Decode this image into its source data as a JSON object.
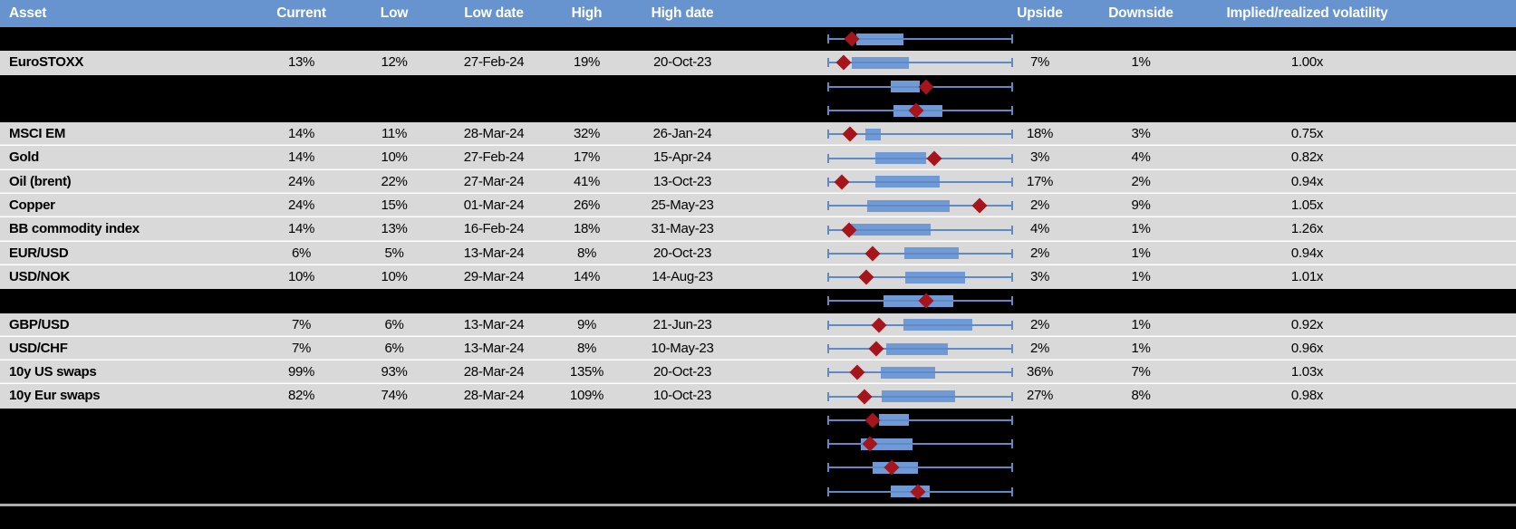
{
  "header": {
    "columns": [
      "Asset",
      "Current",
      "Low",
      "Low date",
      "High",
      "High date",
      "Upside",
      "Downside",
      "Implied/realized volatility"
    ]
  },
  "colors": {
    "header_bg": "#6794CE",
    "header_text": "#FFFFFF",
    "row_gray": "#D9D9D9",
    "row_hidden": "#000000",
    "whisker_blue": "#5E8AC7",
    "box_blue": "#6F9AD6",
    "diamond_red": "#A5151B",
    "divider_gray": "#ADADAD"
  },
  "rows": [
    {
      "type": "hidden",
      "plot": {
        "box_lo": 0.155,
        "box_hi": 0.41,
        "diamond": 0.13
      }
    },
    {
      "type": "asset",
      "asset": "EuroSTOXX",
      "current": "13%",
      "low": "12%",
      "low_date": "27-Feb-24",
      "high": "19%",
      "high_date": "20-Oct-23",
      "upside": "7%",
      "downside": "1%",
      "impl_real": "1.00x",
      "plot": {
        "box_lo": 0.13,
        "box_hi": 0.44,
        "diamond": 0.09
      }
    },
    {
      "type": "hidden",
      "plot": {
        "box_lo": 0.34,
        "box_hi": 0.5,
        "diamond": 0.53
      }
    },
    {
      "type": "hidden",
      "plot": {
        "box_lo": 0.355,
        "box_hi": 0.62,
        "diamond": 0.48
      }
    },
    {
      "type": "asset",
      "asset": "MSCI EM",
      "current": "14%",
      "low": "11%",
      "low_date": "28-Mar-24",
      "high": "32%",
      "high_date": "26-Jan-24",
      "upside": "18%",
      "downside": "3%",
      "impl_real": "0.75x",
      "plot": {
        "box_lo": 0.205,
        "box_hi": 0.29,
        "diamond": 0.12
      }
    },
    {
      "type": "asset",
      "asset": "Gold",
      "current": "14%",
      "low": "10%",
      "low_date": "27-Feb-24",
      "high": "17%",
      "high_date": "15-Apr-24",
      "upside": "3%",
      "downside": "4%",
      "impl_real": "0.82x",
      "plot": {
        "box_lo": 0.26,
        "box_hi": 0.53,
        "diamond": 0.575
      }
    },
    {
      "type": "asset",
      "asset": "Oil (brent)",
      "current": "24%",
      "low": "22%",
      "low_date": "27-Mar-24",
      "high": "41%",
      "high_date": "13-Oct-23",
      "upside": "17%",
      "downside": "2%",
      "impl_real": "0.94x",
      "plot": {
        "box_lo": 0.26,
        "box_hi": 0.605,
        "diamond": 0.078
      }
    },
    {
      "type": "asset",
      "asset": "Copper",
      "current": "24%",
      "low": "15%",
      "low_date": "01-Mar-24",
      "high": "26%",
      "high_date": "25-May-23",
      "upside": "2%",
      "downside": "9%",
      "impl_real": "1.05x",
      "plot": {
        "box_lo": 0.215,
        "box_hi": 0.66,
        "diamond": 0.82
      }
    },
    {
      "type": "asset",
      "asset": "BB commodity index",
      "current": "14%",
      "low": "13%",
      "low_date": "16-Feb-24",
      "high": "18%",
      "high_date": "31-May-23",
      "upside": "4%",
      "downside": "1%",
      "impl_real": "1.26x",
      "plot": {
        "box_lo": 0.12,
        "box_hi": 0.556,
        "diamond": 0.117
      }
    },
    {
      "type": "asset",
      "asset": "EUR/USD",
      "current": "6%",
      "low": "5%",
      "low_date": "13-Mar-24",
      "high": "8%",
      "high_date": "20-Oct-23",
      "upside": "2%",
      "downside": "1%",
      "impl_real": "0.94x",
      "plot": {
        "box_lo": 0.415,
        "box_hi": 0.707,
        "diamond": 0.244
      }
    },
    {
      "type": "asset",
      "asset": "USD/NOK",
      "current": "10%",
      "low": "10%",
      "low_date": "29-Mar-24",
      "high": "14%",
      "high_date": "14-Aug-23",
      "upside": "3%",
      "downside": "1%",
      "impl_real": "1.01x",
      "plot": {
        "box_lo": 0.42,
        "box_hi": 0.74,
        "diamond": 0.21
      }
    },
    {
      "type": "hidden",
      "plot": {
        "box_lo": 0.3,
        "box_hi": 0.68,
        "diamond": 0.53
      }
    },
    {
      "type": "asset",
      "asset": "GBP/USD",
      "current": "7%",
      "low": "6%",
      "low_date": "13-Mar-24",
      "high": "9%",
      "high_date": "21-Jun-23",
      "upside": "2%",
      "downside": "1%",
      "impl_real": "0.92x",
      "plot": {
        "box_lo": 0.41,
        "box_hi": 0.78,
        "diamond": 0.278
      }
    },
    {
      "type": "asset",
      "asset": "USD/CHF",
      "current": "7%",
      "low": "6%",
      "low_date": "13-Mar-24",
      "high": "8%",
      "high_date": "10-May-23",
      "upside": "2%",
      "downside": "1%",
      "impl_real": "0.96x",
      "plot": {
        "box_lo": 0.317,
        "box_hi": 0.65,
        "diamond": 0.263
      }
    },
    {
      "type": "asset",
      "asset": "10y US swaps",
      "current": "99%",
      "low": "93%",
      "low_date": "28-Mar-24",
      "high": "135%",
      "high_date": "20-Oct-23",
      "upside": "36%",
      "downside": "7%",
      "impl_real": "1.03x",
      "plot": {
        "box_lo": 0.288,
        "box_hi": 0.58,
        "diamond": 0.16
      }
    },
    {
      "type": "asset",
      "asset": "10y Eur swaps",
      "current": "82%",
      "low": "74%",
      "low_date": "28-Mar-24",
      "high": "109%",
      "high_date": "10-Oct-23",
      "upside": "27%",
      "downside": "8%",
      "impl_real": "0.98x",
      "plot": {
        "box_lo": 0.293,
        "box_hi": 0.69,
        "diamond": 0.2
      }
    },
    {
      "type": "hidden",
      "plot": {
        "box_lo": 0.28,
        "box_hi": 0.44,
        "diamond": 0.245
      }
    },
    {
      "type": "hidden",
      "plot": {
        "box_lo": 0.18,
        "box_hi": 0.46,
        "diamond": 0.23
      }
    },
    {
      "type": "hidden",
      "plot": {
        "box_lo": 0.244,
        "box_hi": 0.49,
        "diamond": 0.346
      }
    },
    {
      "type": "hidden",
      "plot": {
        "box_lo": 0.34,
        "box_hi": 0.55,
        "diamond": 0.49
      }
    }
  ]
}
